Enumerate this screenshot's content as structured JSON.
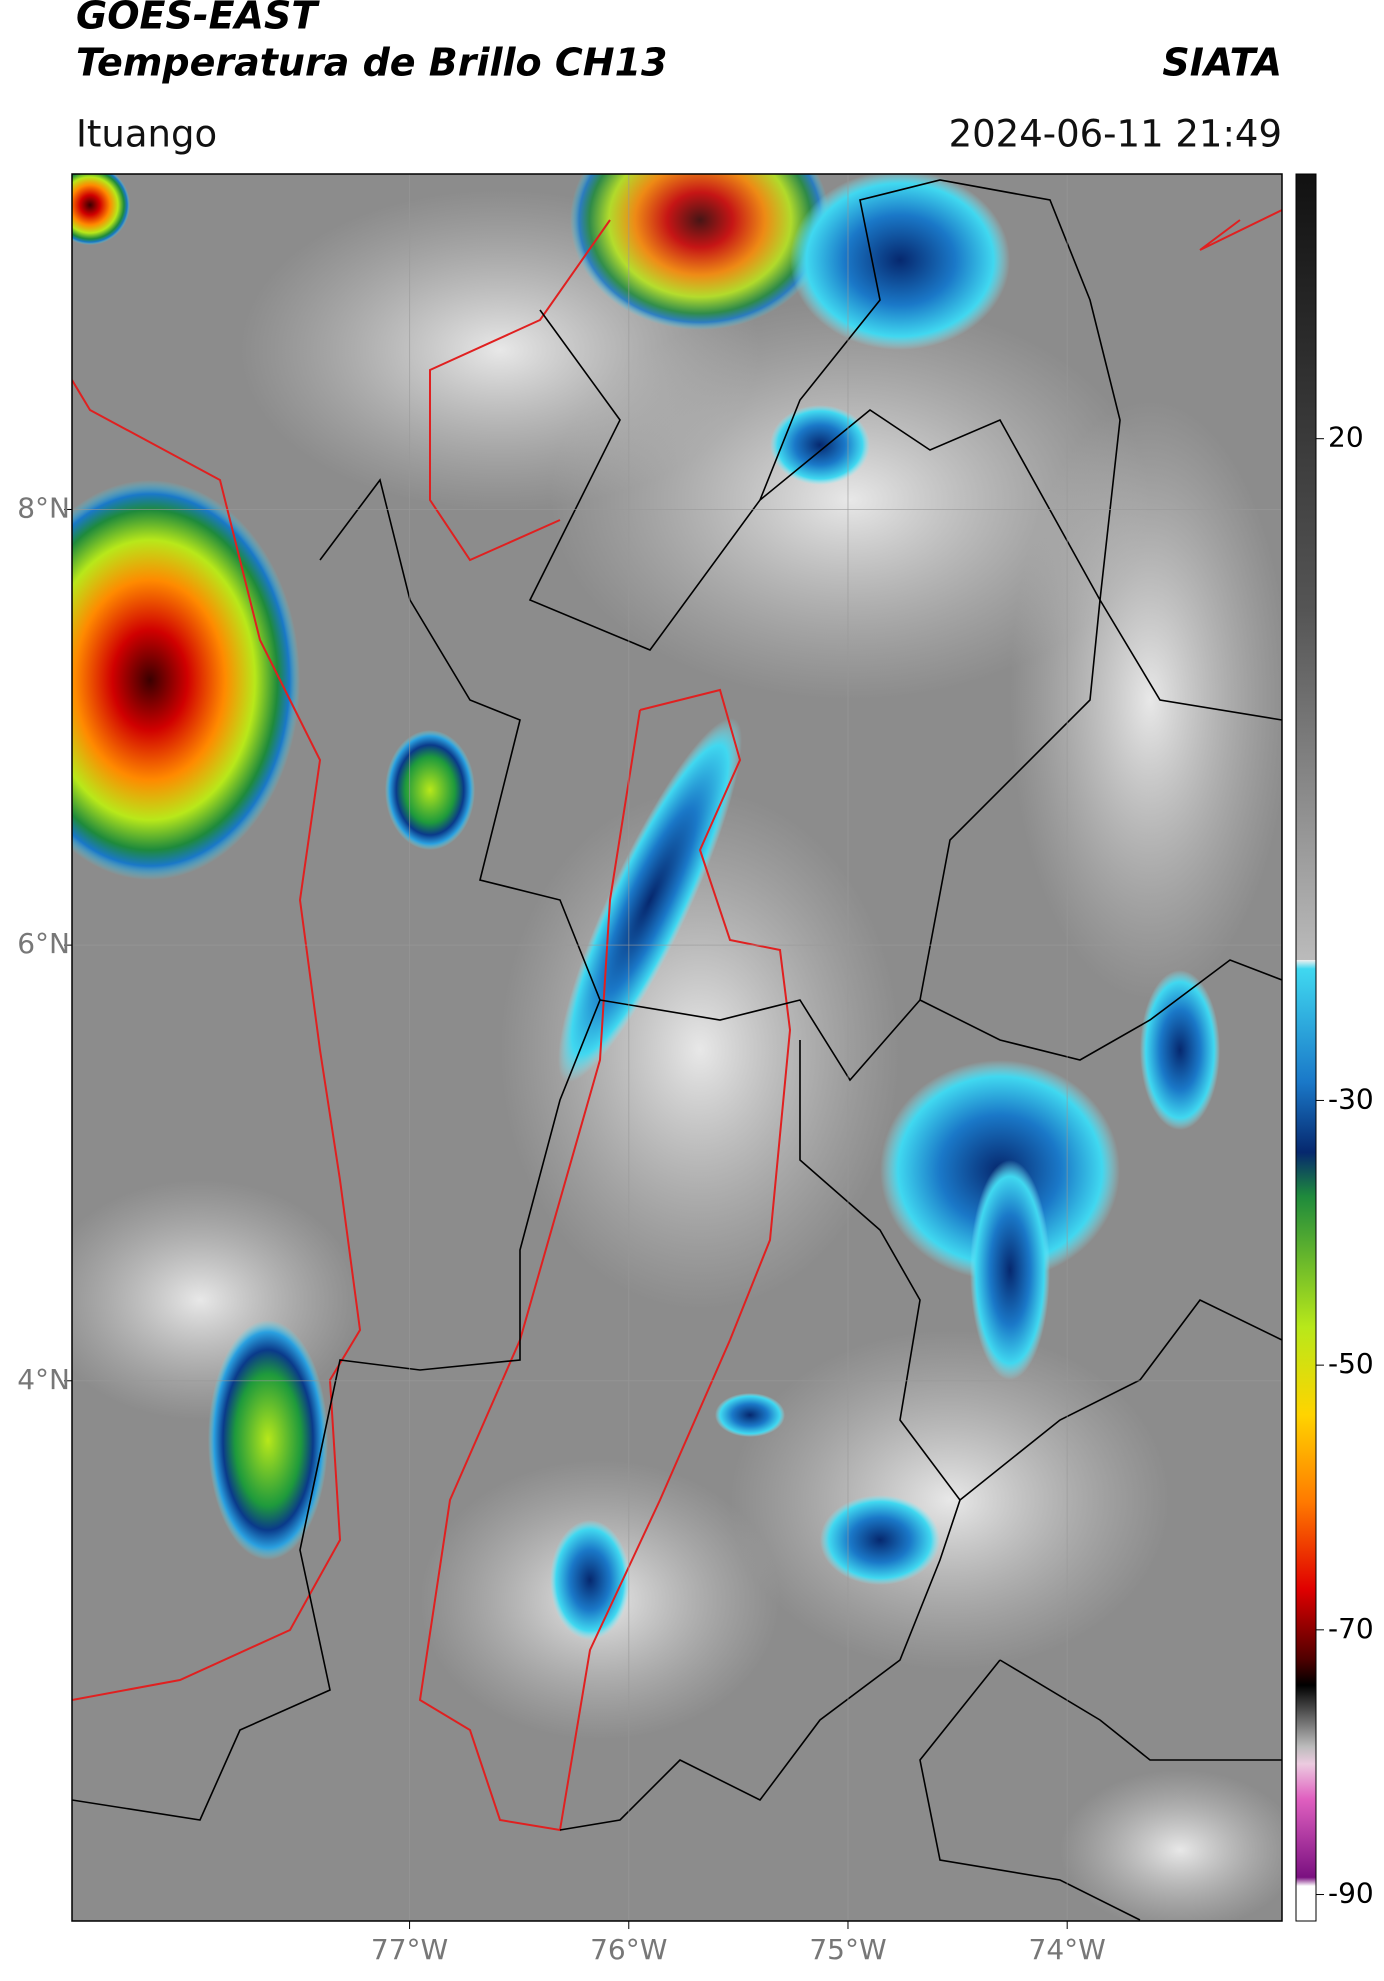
{
  "header": {
    "title": "GOES-EAST",
    "subtitle": "Temperatura de Brillo CH13",
    "source": "SIATA",
    "location": "Ituango",
    "datetime": "2024-06-11 21:49"
  },
  "map": {
    "xlim": [
      -78.54,
      -73.02
    ],
    "ylim": [
      1.52,
      9.54
    ],
    "xticks": [
      {
        "value": -77,
        "label": "77°W"
      },
      {
        "value": -76,
        "label": "76°W"
      },
      {
        "value": -75,
        "label": "75°W"
      },
      {
        "value": -74,
        "label": "74°W"
      }
    ],
    "yticks": [
      {
        "value": 8,
        "label": "8°N"
      },
      {
        "value": 6,
        "label": "6°N"
      },
      {
        "value": 4,
        "label": "4°N"
      }
    ]
  },
  "colorbar": {
    "range": [
      -92,
      40
    ],
    "ticks": [
      20,
      -30,
      -50,
      -70,
      -90
    ]
  }
}
